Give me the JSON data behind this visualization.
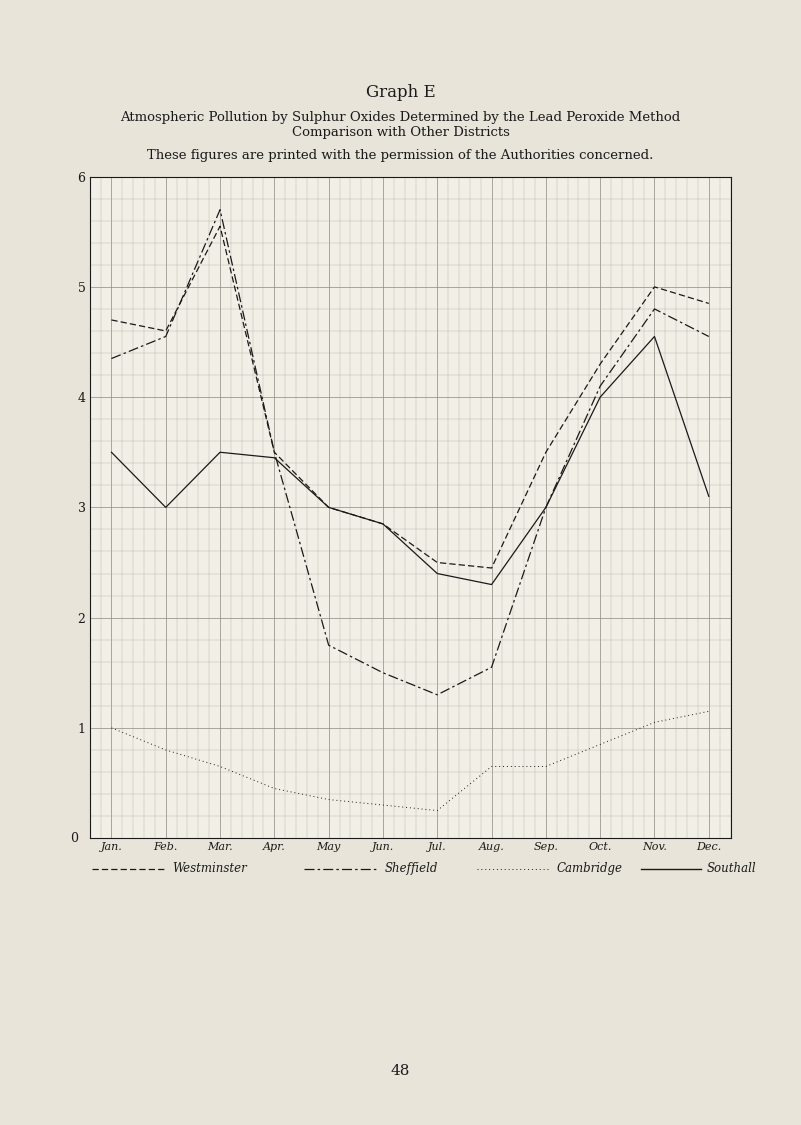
{
  "title": "Graph E",
  "subtitle1": "Atmospheric Pollution by Sulphur Oxides Determined by the Lead Peroxide Method",
  "subtitle2": "Comparison with Other Districts",
  "note": "These figures are printed with the permission of the Authorities concerned.",
  "months": [
    "Jan.",
    "Feb.",
    "Mar.",
    "Apr.",
    "May",
    "Jun.",
    "Jul.",
    "Aug.",
    "Sep.",
    "Oct.",
    "Nov.",
    "Dec."
  ],
  "ylim": [
    0,
    6
  ],
  "yticks": [
    0,
    1,
    2,
    3,
    4,
    5,
    6
  ],
  "westminster": [
    4.7,
    4.6,
    5.55,
    3.5,
    3.0,
    2.85,
    2.5,
    2.45,
    3.5,
    4.3,
    5.0,
    4.85
  ],
  "sheffield": [
    4.35,
    4.55,
    5.7,
    3.5,
    1.75,
    1.5,
    1.3,
    1.55,
    3.0,
    4.1,
    4.8,
    4.55
  ],
  "cambridge": [
    1.0,
    0.8,
    0.65,
    0.45,
    0.35,
    0.3,
    0.25,
    0.65,
    0.65,
    0.85,
    1.05,
    1.15
  ],
  "southall": [
    3.5,
    3.0,
    3.5,
    3.45,
    3.0,
    2.85,
    2.4,
    2.3,
    3.0,
    4.0,
    4.55,
    3.1
  ],
  "bg_color": "#e8e4da",
  "plot_bg": "#f2efe6",
  "line_color": "#1a1a1a",
  "page_number": "48"
}
